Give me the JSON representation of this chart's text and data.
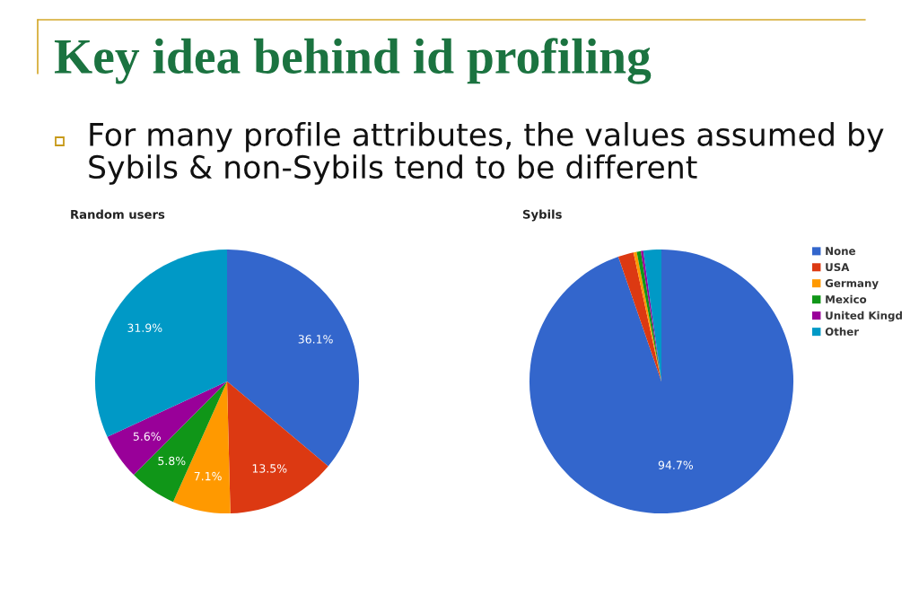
{
  "chart_data": [
    {
      "type": "pie",
      "title": "Random users",
      "annotations": [
        "Key idea behind id profiling",
        "For many profile attributes, the values assumed by Sybils & non-Sybils tend to be different"
      ],
      "categories": [
        null,
        null,
        null,
        null,
        null,
        null
      ],
      "values": [
        36.1,
        13.5,
        7.1,
        5.8,
        5.6,
        31.9
      ],
      "colors": [
        "#3366cc",
        "#dc3912",
        "#ff9900",
        "#109618",
        "#990099",
        "#0099c6"
      ],
      "value_labels": [
        "36.1%",
        "13.5%",
        "7.1%",
        "5.8%",
        "5.6%",
        "31.9%"
      ]
    },
    {
      "type": "pie",
      "title": "Sybils",
      "categories": [
        "None",
        "USA",
        "Germany",
        "Mexico",
        "United Kingd",
        "Other"
      ],
      "values": [
        94.7,
        1.9,
        0.4,
        0.5,
        0.3,
        2.2
      ],
      "colors": [
        "#3366cc",
        "#dc3912",
        "#ff9900",
        "#109618",
        "#990099",
        "#0099c6"
      ],
      "value_labels": [
        "94.7%",
        null,
        null,
        null,
        null,
        null
      ],
      "legend": "right"
    }
  ]
}
